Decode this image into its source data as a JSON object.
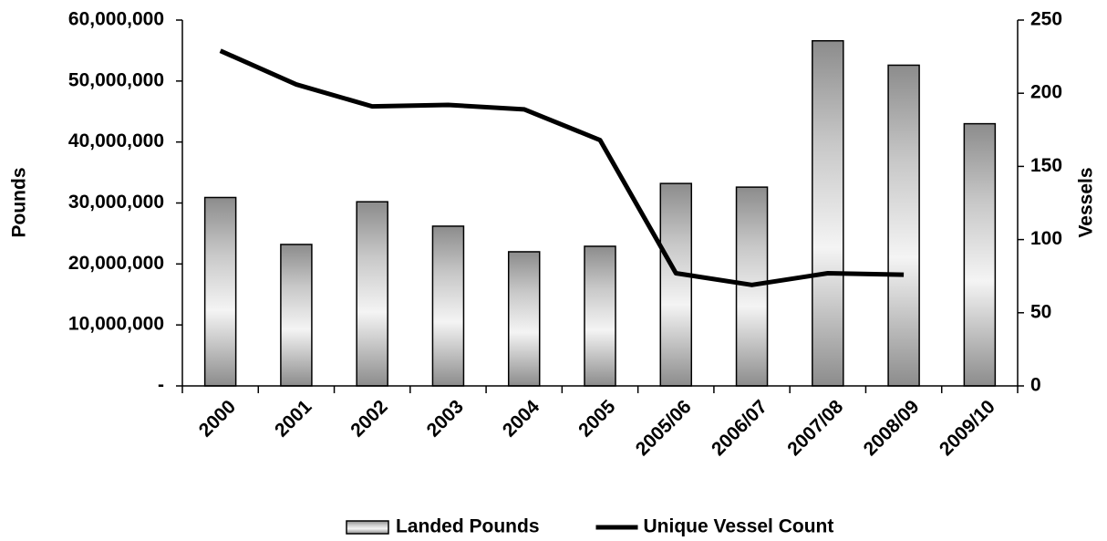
{
  "chart_data": {
    "type": "bar_line",
    "categories": [
      "2000",
      "2001",
      "2002",
      "2003",
      "2004",
      "2005",
      "2005/06",
      "2006/07",
      "2007/08",
      "2008/09",
      "2009/10"
    ],
    "series": [
      {
        "name": "Landed Pounds",
        "type": "bar",
        "color": "#8c8c8c",
        "axis": "y",
        "values": [
          30900000,
          23200000,
          30200000,
          26200000,
          22000000,
          22900000,
          33200000,
          32600000,
          56600000,
          52600000,
          43000000
        ]
      },
      {
        "name": "Unique Vessel Count",
        "type": "line",
        "color": "#000000",
        "axis": "y2",
        "values": [
          229,
          206,
          191,
          192,
          189,
          168,
          77,
          69,
          77,
          76,
          null
        ]
      }
    ],
    "ylabel": "Pounds",
    "y2label": "Vessels",
    "ylim": [
      0,
      60000000
    ],
    "yticks": [
      {
        "value": 0,
        "label": "-"
      },
      {
        "value": 10000000,
        "label": "10,000,000"
      },
      {
        "value": 20000000,
        "label": "20,000,000"
      },
      {
        "value": 30000000,
        "label": "30,000,000"
      },
      {
        "value": 40000000,
        "label": "40,000,000"
      },
      {
        "value": 50000000,
        "label": "50,000,000"
      },
      {
        "value": 60000000,
        "label": "60,000,000"
      }
    ],
    "y2lim": [
      0,
      250
    ],
    "y2ticks": [
      0,
      50,
      100,
      150,
      200,
      250
    ],
    "legend": "bottom"
  }
}
